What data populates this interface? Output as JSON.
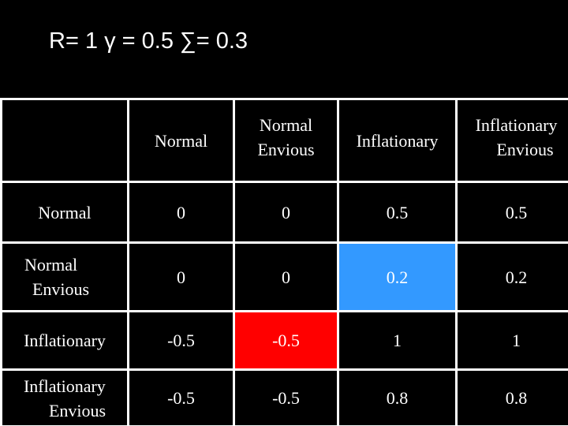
{
  "title": "R= 1 γ = 0.5 ∑= 0.3",
  "table": {
    "columns": [
      "",
      [
        "Normal"
      ],
      [
        "Normal",
        "Envious"
      ],
      [
        "Inflationary"
      ],
      [
        "Inflationary",
        "Envious"
      ]
    ],
    "rows": [
      {
        "label": [
          "Normal"
        ],
        "values": [
          "0",
          "0",
          "0.5",
          "0.5"
        ]
      },
      {
        "label": [
          "Normal",
          "Envious"
        ],
        "values": [
          "0",
          "0",
          "0.2",
          "0.2"
        ]
      },
      {
        "label": [
          "Inflationary"
        ],
        "values": [
          "-0.5",
          "-0.5",
          "1",
          "1"
        ]
      },
      {
        "label": [
          "Inflationary",
          "Envious"
        ],
        "values": [
          "-0.5",
          "-0.5",
          "0.8",
          "0.8"
        ]
      }
    ],
    "highlights": {
      "blue": "#3399ff",
      "red": "#ff0000"
    }
  }
}
